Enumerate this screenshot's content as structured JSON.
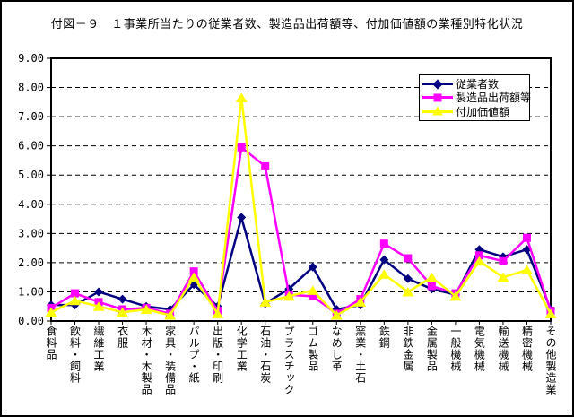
{
  "title": "付図－９　１事業所当たりの従業者数、製造品出荷額等、付加価値額の業種別特化状況",
  "colors": {
    "background": "#FFFFFF",
    "frame": "#000000",
    "gridline": "#000000",
    "series_employees": "#000080",
    "series_shipment_value": "#FF00FF",
    "series_value_added": "#FFFF00"
  },
  "chart_data": {
    "type": "line",
    "title": "付図－９　１事業所当たりの従業者数、製造品出荷額等、付加価値額の業種別特化状況",
    "categories": [
      "食料品",
      "飲料・飼料",
      "繊維工業",
      "衣服",
      "木材・木製品",
      "家具・装備品",
      "パルプ・紙",
      "出版・印刷",
      "化学工業",
      "石油・石炭",
      "プラスチック",
      "ゴム製品",
      "なめし革",
      "窯業・土石",
      "鉄鋼",
      "非鉄金属",
      "金属製品",
      "一般機械",
      "電気機械",
      "輸送機械",
      "精密機械",
      "その他製造業"
    ],
    "series": [
      {
        "name": "従業者数",
        "key": "employees",
        "color": "#000080",
        "marker": "diamond",
        "values": [
          0.55,
          0.55,
          1.0,
          0.75,
          0.5,
          0.4,
          1.25,
          0.5,
          3.55,
          0.6,
          1.1,
          1.85,
          0.4,
          0.55,
          2.1,
          1.45,
          1.1,
          0.9,
          2.45,
          2.2,
          2.45,
          0.4
        ]
      },
      {
        "name": "製造品出荷額等",
        "key": "shipment-value",
        "color": "#FF00FF",
        "marker": "square",
        "values": [
          0.45,
          0.95,
          0.65,
          0.4,
          0.45,
          0.25,
          1.7,
          0.35,
          5.95,
          5.3,
          0.9,
          0.85,
          0.25,
          0.75,
          2.65,
          2.15,
          1.2,
          0.95,
          2.25,
          2.05,
          2.85,
          0.35
        ]
      },
      {
        "name": "付加価値額",
        "key": "value-added",
        "color": "#FFFF00",
        "marker": "triangle",
        "values": [
          0.3,
          0.7,
          0.5,
          0.3,
          0.4,
          0.2,
          1.5,
          0.25,
          7.65,
          0.65,
          0.85,
          1.05,
          0.2,
          0.65,
          1.6,
          1.0,
          1.5,
          0.85,
          2.05,
          1.5,
          1.75,
          0.25
        ]
      }
    ],
    "ylim": [
      0,
      9
    ],
    "ytick_labels": [
      "0.00",
      "1.00",
      "2.00",
      "3.00",
      "4.00",
      "5.00",
      "6.00",
      "7.00",
      "8.00",
      "9.00"
    ],
    "grid": "horizontal-dashed",
    "legend_position": "top-right-inside"
  }
}
